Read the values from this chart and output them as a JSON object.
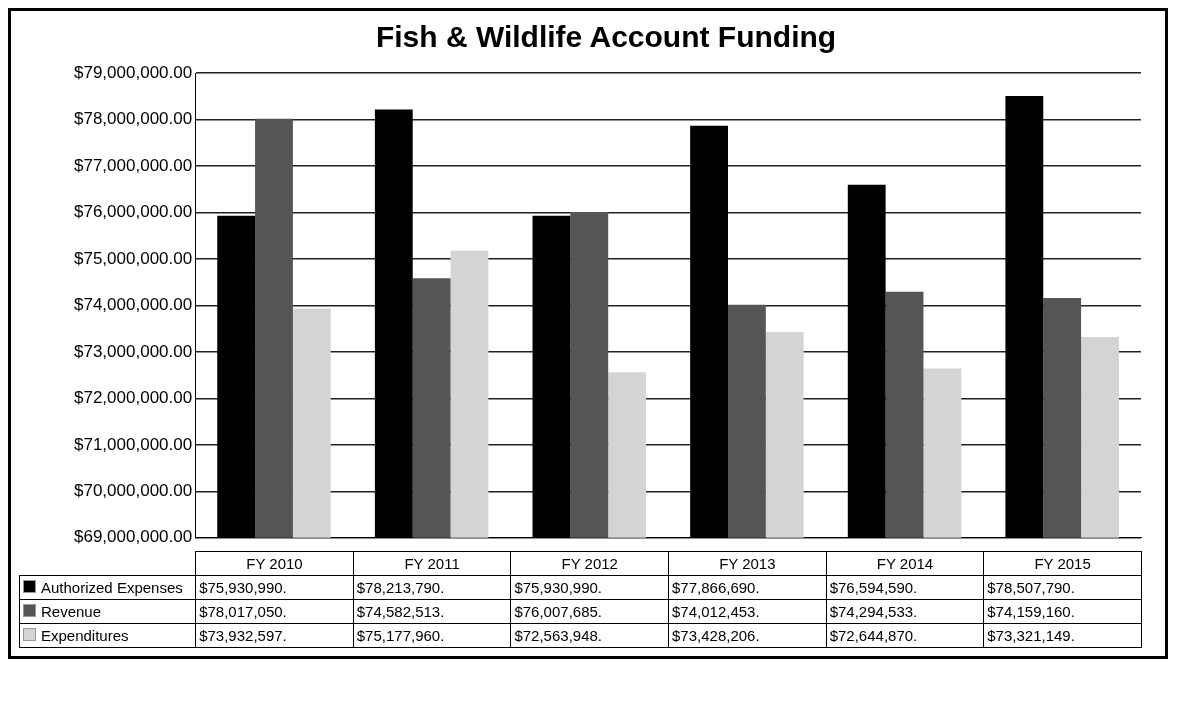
{
  "chart_data": {
    "type": "bar",
    "title": "Fish & Wildlife Account Funding",
    "categories": [
      "FY 2010",
      "FY 2011",
      "FY 2012",
      "FY 2013",
      "FY 2014",
      "FY 2015"
    ],
    "series": [
      {
        "name": "Authorized Expenses",
        "color": "#000000",
        "values": [
          75930990,
          78213790,
          75930990,
          77866690,
          76594590,
          78507790
        ],
        "value_labels": [
          "$75,930,990.",
          "$78,213,790.",
          "$75,930,990.",
          "$77,866,690.",
          "$76,594,590.",
          "$78,507,790."
        ]
      },
      {
        "name": "Revenue",
        "color": "#555555",
        "values": [
          78017050,
          74582513,
          76007685,
          74012453,
          74294533,
          74159160
        ],
        "value_labels": [
          "$78,017,050.",
          "$74,582,513.",
          "$76,007,685.",
          "$74,012,453.",
          "$74,294,533.",
          "$74,159,160."
        ]
      },
      {
        "name": "Expenditures",
        "color": "#d4d4d4",
        "values": [
          73932597,
          75177960,
          72563948,
          73428206,
          72644870,
          73321149
        ],
        "value_labels": [
          "$73,932,597.",
          "$75,177,960.",
          "$72,563,948.",
          "$73,428,206.",
          "$72,644,870.",
          "$73,321,149."
        ]
      }
    ],
    "ylim": [
      69000000,
      79000000
    ],
    "yticks": [
      {
        "value": 69000000,
        "label": "$69,000,000.00"
      },
      {
        "value": 70000000,
        "label": "$70,000,000.00"
      },
      {
        "value": 71000000,
        "label": "$71,000,000.00"
      },
      {
        "value": 72000000,
        "label": "$72,000,000.00"
      },
      {
        "value": 73000000,
        "label": "$73,000,000.00"
      },
      {
        "value": 74000000,
        "label": "$74,000,000.00"
      },
      {
        "value": 75000000,
        "label": "$75,000,000.00"
      },
      {
        "value": 76000000,
        "label": "$76,000,000.00"
      },
      {
        "value": 77000000,
        "label": "$77,000,000.00"
      },
      {
        "value": 78000000,
        "label": "$78,000,000.00"
      },
      {
        "value": 79000000,
        "label": "$79,000,000.00"
      }
    ],
    "grid": "y",
    "legend": "bottom"
  }
}
